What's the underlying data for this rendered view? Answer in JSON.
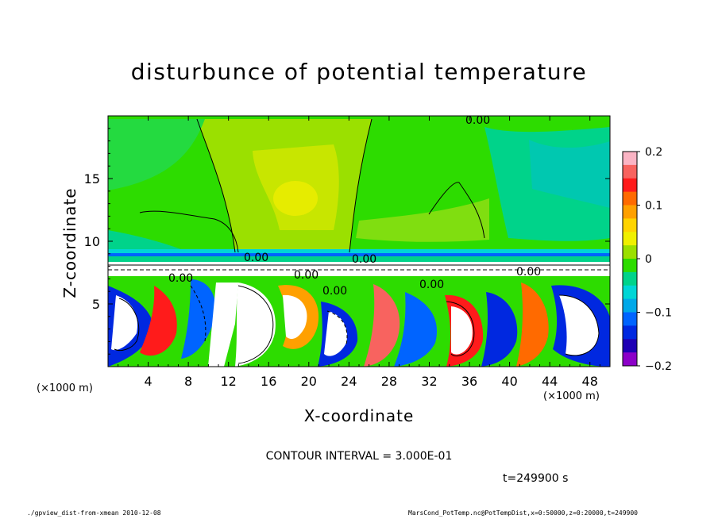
{
  "title": "disturbunce of potential temperature",
  "chart_data": {
    "type": "heatmap",
    "title": "disturbunce of potential temperature",
    "xlabel": "X-coordinate",
    "ylabel": "Z-coordinate",
    "x_unit_note": "(×1000 m)",
    "xlim": [
      0,
      50
    ],
    "ylim": [
      0,
      20
    ],
    "x_ticks": [
      4,
      8,
      12,
      16,
      20,
      24,
      28,
      32,
      36,
      40,
      44,
      48
    ],
    "x_tick_labels": [
      "4",
      "8",
      "12",
      "16",
      "20",
      "24",
      "28",
      "32",
      "36",
      "40",
      "44",
      "48"
    ],
    "y_ticks": [
      5,
      10,
      15
    ],
    "y_tick_labels": [
      "5",
      "10",
      "15"
    ],
    "colorbar": {
      "range": [
        -0.2,
        0.2
      ],
      "ticks": [
        0.2,
        0.1,
        0,
        -0.1,
        -0.2
      ],
      "tick_labels": [
        "0.2",
        "0.1",
        "0",
        "−0.1",
        "−0.2"
      ],
      "colors": [
        "#fbb4c4",
        "#f8635f",
        "#ff1b1b",
        "#ff6a00",
        "#ffa000",
        "#ffd400",
        "#f0f000",
        "#9be000",
        "#2ddc00",
        "#00d38a",
        "#00d6d6",
        "#00a8e8",
        "#0064ff",
        "#0028e0",
        "#1e00b4",
        "#8c00c8"
      ]
    },
    "contour_labels": [
      "0.00",
      "0.00",
      "0.00",
      "0.00",
      "0.00",
      "0.00",
      "0.00",
      "0.00"
    ],
    "contour_interval_text": "CONTOUR INTERVAL = 3.000E-01",
    "time_text": "t=249900 s"
  },
  "footer": {
    "left": "./gpview_dist-from-xmean  2010-12-08",
    "right": "MarsCond_PotTemp.nc@PotTempDist,x=0:50000,z=0:20000,t=249900"
  }
}
